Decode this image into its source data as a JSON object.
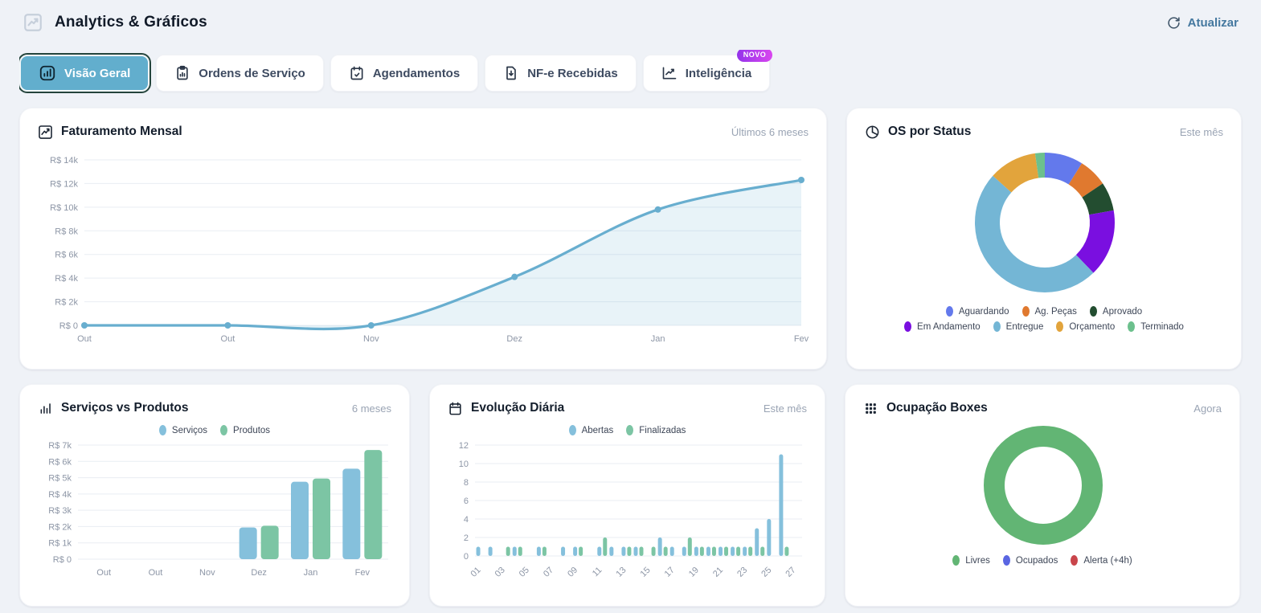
{
  "header": {
    "title": "Analytics & Gráficos",
    "refresh_label": "Atualizar",
    "icon": "trending-chart-icon"
  },
  "tabs": [
    {
      "label": "Visão Geral",
      "icon": "bar-chart-panel-icon",
      "active": true
    },
    {
      "label": "Ordens de Serviço",
      "icon": "clipboard-chart-icon",
      "active": false
    },
    {
      "label": "Agendamentos",
      "icon": "calendar-check-icon",
      "active": false
    },
    {
      "label": "NF-e Recebidas",
      "icon": "file-download-icon",
      "active": false
    },
    {
      "label": "Inteligência",
      "icon": "trend-line-icon",
      "active": false,
      "badge": "NOVO"
    }
  ],
  "cards": {
    "faturamento": {
      "title": "Faturamento Mensal",
      "period": "Últimos 6 meses",
      "icon": "trending-up-icon"
    },
    "os_status": {
      "title": "OS por Status",
      "period": "Este mês",
      "icon": "pie-chart-icon"
    },
    "servicos": {
      "title": "Serviços vs Produtos",
      "period": "6 meses",
      "icon": "bar-chart-icon"
    },
    "evolucao": {
      "title": "Evolução Diária",
      "period": "Este mês",
      "icon": "calendar-icon"
    },
    "ocupacao": {
      "title": "Ocupação Boxes",
      "period": "Agora",
      "icon": "grid-icon"
    }
  },
  "chart_data": [
    {
      "id": "faturamento",
      "type": "area",
      "title": "Faturamento Mensal",
      "categories": [
        "Out",
        "Out",
        "Nov",
        "Dez",
        "Jan",
        "Fev"
      ],
      "values": [
        0,
        0,
        0,
        4100,
        9800,
        12300
      ],
      "yticks": [
        "R$ 0",
        "R$ 2k",
        "R$ 4k",
        "R$ 6k",
        "R$ 8k",
        "R$ 10k",
        "R$ 12k",
        "R$ 14k"
      ],
      "ylim": [
        0,
        14000
      ],
      "color": "#68aecf",
      "fill": "rgba(104,174,207,0.15)",
      "grid": true,
      "legend_position": "none"
    },
    {
      "id": "os_status",
      "type": "donut",
      "title": "OS por Status",
      "labels": [
        "Aguardando",
        "Ag. Peças",
        "Aprovado",
        "Em Andamento",
        "Entregue",
        "Orçamento",
        "Terminado"
      ],
      "values": [
        4,
        3,
        3,
        7,
        22,
        5,
        1
      ],
      "colors": [
        "#6379ec",
        "#e0792f",
        "#234d30",
        "#7a0fe0",
        "#74b6d5",
        "#e2a43c",
        "#6cc08d"
      ],
      "legend_position": "bottom"
    },
    {
      "id": "servicos",
      "type": "bar",
      "title": "Serviços vs Produtos",
      "categories": [
        "Out",
        "Out",
        "Nov",
        "Dez",
        "Jan",
        "Fev"
      ],
      "series": [
        {
          "name": "Serviços",
          "color": "#85c0dc",
          "values": [
            0,
            0,
            0,
            1950,
            4750,
            5550
          ]
        },
        {
          "name": "Produtos",
          "color": "#7cc5a4",
          "values": [
            0,
            0,
            0,
            2050,
            4950,
            6700
          ]
        }
      ],
      "yticks": [
        "R$ 0",
        "R$ 1k",
        "R$ 2k",
        "R$ 3k",
        "R$ 4k",
        "R$ 5k",
        "R$ 6k",
        "R$ 7k"
      ],
      "ylim": [
        0,
        7000
      ],
      "grid": true,
      "legend_position": "top"
    },
    {
      "id": "evolucao",
      "type": "bar",
      "title": "Evolução Diária",
      "categories": [
        "01",
        "02",
        "03",
        "04",
        "05",
        "06",
        "07",
        "08",
        "09",
        "10",
        "11",
        "12",
        "13",
        "14",
        "15",
        "16",
        "17",
        "18",
        "19",
        "20",
        "21",
        "22",
        "23",
        "24",
        "25",
        "26",
        "27"
      ],
      "series": [
        {
          "name": "Abertas",
          "color": "#85c0dc",
          "values": [
            1,
            1,
            0,
            1,
            0,
            1,
            0,
            1,
            1,
            0,
            1,
            1,
            1,
            1,
            0,
            2,
            1,
            1,
            1,
            1,
            1,
            1,
            1,
            3,
            4,
            11,
            0
          ]
        },
        {
          "name": "Finalizadas",
          "color": "#7cc5a4",
          "values": [
            0,
            0,
            1,
            1,
            0,
            1,
            0,
            0,
            1,
            0,
            2,
            0,
            1,
            1,
            1,
            1,
            0,
            2,
            1,
            1,
            1,
            1,
            1,
            1,
            0,
            1,
            0
          ]
        }
      ],
      "yticks": [
        "0",
        "2",
        "4",
        "6",
        "8",
        "10",
        "12"
      ],
      "ylim": [
        0,
        12
      ],
      "grid": true,
      "legend_position": "top"
    },
    {
      "id": "ocupacao",
      "type": "donut",
      "title": "Ocupação Boxes",
      "labels": [
        "Livres",
        "Ocupados",
        "Alerta (+4h)"
      ],
      "values": [
        100,
        0,
        0
      ],
      "colors": [
        "#62b574",
        "#5a66e2",
        "#c9454b"
      ],
      "legend_position": "bottom"
    }
  ]
}
